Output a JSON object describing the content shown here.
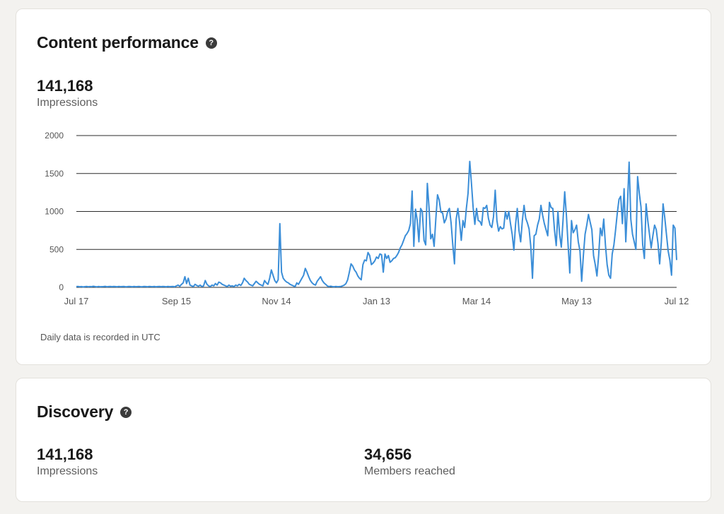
{
  "content_performance": {
    "title": "Content performance",
    "help_icon": "question-circle-icon",
    "impressions_value": "141,168",
    "impressions_label": "Impressions",
    "footnote": "Daily data is recorded in UTC"
  },
  "discovery": {
    "title": "Discovery",
    "help_icon": "question-circle-icon",
    "impressions_value": "141,168",
    "impressions_label": "Impressions",
    "members_value": "34,656",
    "members_label": "Members reached"
  },
  "colors": {
    "line": "#3b8ed8",
    "grid": "#2b2b2b",
    "background": "#f3f2ef"
  },
  "chart_data": {
    "type": "line",
    "ylim": [
      0,
      2000
    ],
    "yticks": [
      0,
      500,
      1000,
      1500,
      2000
    ],
    "xtick_labels": [
      "Jul 17",
      "Sep 15",
      "Nov 14",
      "Jan 13",
      "Mar 14",
      "May 13",
      "Jul 12"
    ],
    "x_start": "Jul 17",
    "x_end": "Jul 12",
    "grid": true,
    "series": [
      {
        "values": [
          10,
          12,
          8,
          10,
          6,
          9,
          12,
          8,
          10,
          9,
          14,
          10,
          7,
          11,
          8,
          9,
          10,
          13,
          8,
          10,
          12,
          9,
          11,
          10,
          8,
          12,
          9,
          10,
          11,
          8,
          9,
          12,
          10,
          8,
          11,
          9,
          10,
          12,
          8,
          9,
          11,
          10,
          8,
          12,
          10,
          9,
          11,
          8,
          10,
          12,
          9,
          11,
          10,
          8,
          12,
          9,
          10,
          11,
          8,
          20,
          30,
          15,
          40,
          60,
          140,
          50,
          120,
          30,
          20,
          10,
          40,
          25,
          15,
          30,
          10,
          20,
          90,
          40,
          20,
          10,
          30,
          20,
          50,
          30,
          70,
          60,
          40,
          30,
          20,
          10,
          30,
          15,
          20,
          10,
          30,
          20,
          40,
          25,
          60,
          120,
          90,
          70,
          40,
          30,
          20,
          50,
          80,
          60,
          40,
          30,
          20,
          90,
          60,
          40,
          120,
          230,
          160,
          90,
          60,
          100,
          840,
          200,
          120,
          90,
          70,
          60,
          40,
          30,
          20,
          10,
          60,
          40,
          80,
          120,
          160,
          250,
          200,
          140,
          90,
          60,
          40,
          30,
          80,
          110,
          140,
          90,
          60,
          40,
          20,
          10,
          15,
          10,
          8,
          12,
          9,
          10,
          12,
          20,
          30,
          50,
          100,
          200,
          310,
          280,
          230,
          200,
          150,
          120,
          100,
          300,
          360,
          350,
          460,
          420,
          300,
          320,
          350,
          400,
          380,
          440,
          430,
          200,
          440,
          380,
          420,
          330,
          350,
          380,
          390,
          420,
          460,
          520,
          560,
          620,
          680,
          710,
          750,
          840,
          1270,
          540,
          1030,
          880,
          600,
          1040,
          1000,
          620,
          560,
          1370,
          1050,
          640,
          700,
          540,
          900,
          1220,
          1150,
          990,
          980,
          850,
          900,
          1000,
          1040,
          850,
          560,
          310,
          900,
          1040,
          860,
          620,
          880,
          790,
          1040,
          1240,
          1660,
          1370,
          1050,
          830,
          1040,
          880,
          870,
          820,
          1050,
          1040,
          1080,
          910,
          820,
          790,
          930,
          1280,
          880,
          740,
          800,
          770,
          780,
          1000,
          900,
          1000,
          840,
          700,
          490,
          830,
          1040,
          750,
          600,
          880,
          1080,
          910,
          850,
          770,
          540,
          120,
          680,
          700,
          820,
          900,
          1080,
          950,
          840,
          760,
          680,
          1120,
          1050,
          1040,
          750,
          550,
          1000,
          700,
          530,
          880,
          1260,
          950,
          560,
          190,
          880,
          720,
          760,
          820,
          600,
          480,
          80,
          420,
          700,
          820,
          960,
          860,
          760,
          420,
          300,
          150,
          420,
          780,
          680,
          900,
          560,
          300,
          160,
          120,
          440,
          560,
          760,
          980,
          1160,
          1200,
          840,
          1300,
          600,
          1080,
          1650,
          900,
          700,
          600,
          500,
          1460,
          1240,
          1060,
          560,
          380,
          1100,
          880,
          700,
          520,
          680,
          820,
          760,
          580,
          310,
          600,
          1100,
          920,
          700,
          480,
          360,
          160,
          820,
          780,
          360
        ],
        "note": "daily impressions, estimated from line shape"
      }
    ]
  }
}
